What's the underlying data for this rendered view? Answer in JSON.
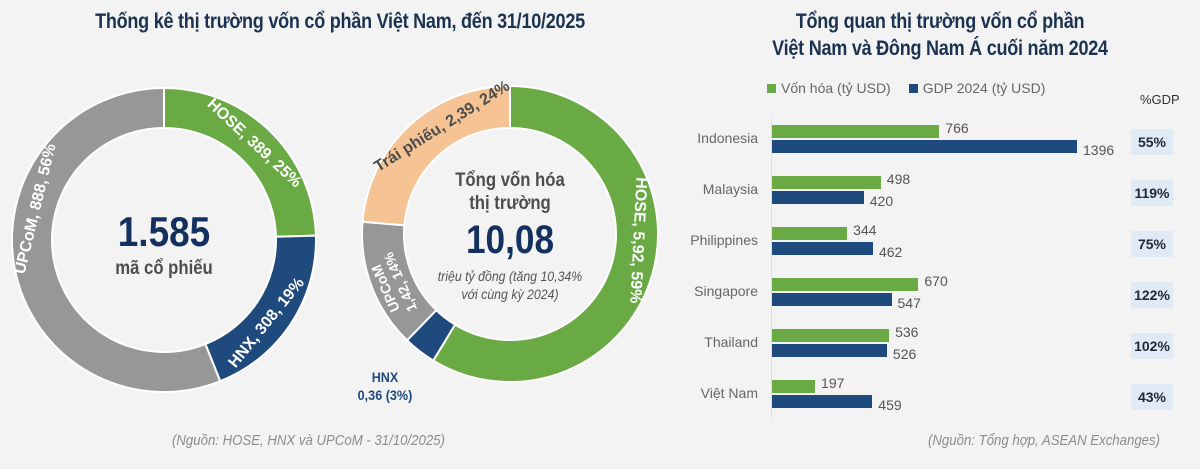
{
  "colors": {
    "green": "#6aaa45",
    "navy": "#1f4a7d",
    "gray": "#979797",
    "peach": "#f6c395",
    "title": "#1b3350",
    "pct_box": "#e0eaf4",
    "background": "#f3f3f3"
  },
  "left_panel": {
    "title": "Thống kê thị trường vốn cổ phần Việt Nam, đến 31/10/2025",
    "center_value": "1.585",
    "center_label": "mã cổ phiếu",
    "source": "(Nguồn: HOSE, HNX và UPCoM - 31/10/2025)",
    "segments": [
      {
        "name": "HOSE",
        "value": 389,
        "pct": 25,
        "label": "HOSE, 389, 25%"
      },
      {
        "name": "HNX",
        "value": 308,
        "pct": 19,
        "label": "HNX, 308, 19%"
      },
      {
        "name": "UPCoM",
        "value": 888,
        "pct": 56,
        "label": "UPCoM, 888, 56%"
      }
    ]
  },
  "middle_panel": {
    "center_line1": "Tổng vốn hóa",
    "center_line2": "thị trường",
    "center_value": "10,08",
    "center_sub1": "triệu tỷ đồng (tăng 10,34%",
    "center_sub2": "với cùng kỳ 2024)",
    "hnx_label_line1": "HNX",
    "hnx_label_line2": "0,36 (3%)",
    "segments": [
      {
        "name": "HOSE",
        "value": 5.92,
        "pct": 59,
        "label": "HOSE, 5,92, 59%"
      },
      {
        "name": "HNX",
        "value": 0.36,
        "pct": 3,
        "label": "HNX 0,36 (3%)"
      },
      {
        "name": "UPCoM",
        "value": 1.42,
        "pct": 14,
        "label": "UPCoM 1,42, 14%"
      },
      {
        "name": "Trái phiếu",
        "value": 2.39,
        "pct": 24,
        "label": "Trái phiếu, 2,39, 24%"
      }
    ]
  },
  "right_panel": {
    "title_line1": "Tổng quan thị trường vốn cổ phần",
    "title_line2": "Việt Nam và Đông Nam Á cuối năm 2024",
    "legend": [
      {
        "label": "Vốn hóa (tỷ USD)",
        "color": "#6aaa45"
      },
      {
        "label": "GDP 2024 (tỷ USD)",
        "color": "#1f4a7d"
      }
    ],
    "gdp_header": "%GDP",
    "source": "(Nguồn: Tổng hợp, ASEAN Exchanges)"
  },
  "chart_data": [
    {
      "type": "pie",
      "title": "Thống kê thị trường vốn cổ phần Việt Nam, đến 31/10/2025",
      "subtitle": "1.585 mã cổ phiếu",
      "categories": [
        "HOSE",
        "HNX",
        "UPCoM"
      ],
      "values": [
        389,
        308,
        888
      ],
      "percent": [
        25,
        19,
        56
      ]
    },
    {
      "type": "pie",
      "title": "Tổng vốn hóa thị trường 10,08 triệu tỷ đồng (tăng 10,34% với cùng kỳ 2024)",
      "categories": [
        "HOSE",
        "HNX",
        "UPCoM",
        "Trái phiếu"
      ],
      "values": [
        5.92,
        0.36,
        1.42,
        2.39
      ],
      "percent": [
        59,
        3,
        14,
        24
      ]
    },
    {
      "type": "bar",
      "orientation": "horizontal",
      "title": "Tổng quan thị trường vốn cổ phần Việt Nam và Đông Nam Á cuối năm 2024",
      "categories": [
        "Indonesia",
        "Malaysia",
        "Philippines",
        "Singapore",
        "Thailand",
        "Việt Nam"
      ],
      "series": [
        {
          "name": "Vốn hóa (tỷ USD)",
          "values": [
            766,
            498,
            344,
            670,
            536,
            197
          ]
        },
        {
          "name": "GDP 2024 (tỷ USD)",
          "values": [
            1396,
            420,
            462,
            547,
            526,
            459
          ]
        }
      ],
      "pct_gdp": [
        "55%",
        "119%",
        "75%",
        "122%",
        "102%",
        "43%"
      ],
      "legend_position": "top",
      "grid": false
    }
  ]
}
